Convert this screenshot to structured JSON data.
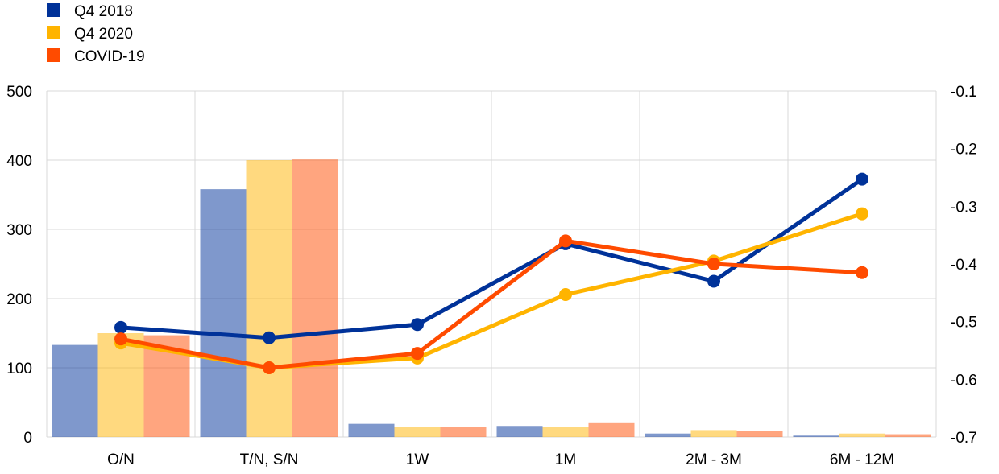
{
  "chart_data": {
    "type": "bar+line",
    "categories": [
      "O/N",
      "T/N, S/N",
      "1W",
      "1M",
      "2M - 3M",
      "6M - 12M"
    ],
    "left_axis": {
      "ylim": [
        0,
        500
      ],
      "ticks": [
        "0",
        "100",
        "200",
        "300",
        "400",
        "500"
      ]
    },
    "right_axis": {
      "ylim": [
        -0.7,
        -0.1
      ],
      "ticks": [
        "-0.7",
        "-0.6",
        "-0.5",
        "-0.4",
        "-0.3",
        "-0.2",
        "-0.1"
      ]
    },
    "grid": true,
    "legend_position": "top-left",
    "series": [
      {
        "name": "Q4 2018",
        "color": "#003299",
        "bar_values": [
          133,
          358,
          19,
          16,
          5,
          2
        ],
        "line_values": [
          -0.51,
          -0.528,
          -0.505,
          -0.365,
          -0.43,
          -0.253
        ]
      },
      {
        "name": "Q4 2020",
        "color": "#FFB400",
        "bar_values": [
          150,
          400,
          15,
          15,
          10,
          5
        ],
        "line_values": [
          -0.537,
          -0.58,
          -0.563,
          -0.453,
          -0.395,
          -0.313
        ]
      },
      {
        "name": "COVID-19",
        "color": "#FF4B00",
        "bar_values": [
          147,
          401,
          15,
          20,
          9,
          4
        ],
        "line_values": [
          -0.53,
          -0.58,
          -0.555,
          -0.36,
          -0.4,
          -0.415
        ]
      }
    ]
  }
}
